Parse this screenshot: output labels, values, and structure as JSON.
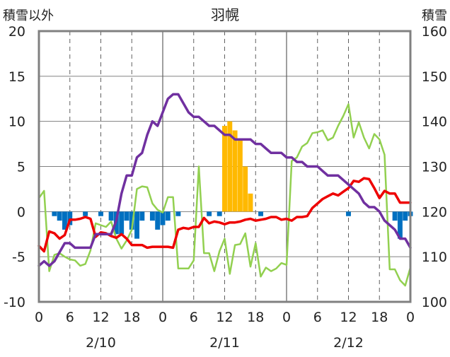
{
  "chart_data": {
    "type": "bar+line",
    "title": "羽幌",
    "ylabel_left": "積雪以外",
    "ylabel_right": "積雪",
    "ylim_left": [
      -10,
      20
    ],
    "ylim_right": [
      100,
      160
    ],
    "yticks_left": [
      "20",
      "15",
      "10",
      "5",
      "0",
      "-5",
      "-10"
    ],
    "yticks_right": [
      "160",
      "150",
      "140",
      "130",
      "120",
      "110",
      "100"
    ],
    "xlim": [
      0,
      72
    ],
    "xticks": [
      {
        "x": 0,
        "label": "0"
      },
      {
        "x": 6,
        "label": "6"
      },
      {
        "x": 12,
        "label": "12"
      },
      {
        "x": 18,
        "label": "18"
      },
      {
        "x": 24,
        "label": "0"
      },
      {
        "x": 30,
        "label": "6"
      },
      {
        "x": 36,
        "label": "12"
      },
      {
        "x": 42,
        "label": "18"
      },
      {
        "x": 48,
        "label": "0"
      },
      {
        "x": 54,
        "label": "6"
      },
      {
        "x": 60,
        "label": "12"
      },
      {
        "x": 66,
        "label": "18"
      },
      {
        "x": 72,
        "label": "0"
      }
    ],
    "date_labels": [
      {
        "x": 12,
        "label": "2/10"
      },
      {
        "x": 36,
        "label": "2/11"
      },
      {
        "x": 60,
        "label": "2/12"
      }
    ],
    "colors": {
      "precip_pos": "#ffb900",
      "precip_neg": "#0070c0",
      "temperature": "#ee0000",
      "humidity_like": "#92d050",
      "snow_depth": "#7030a0"
    },
    "bars": [
      {
        "x": 3,
        "v": -0.5
      },
      {
        "x": 4,
        "v": -1
      },
      {
        "x": 5,
        "v": -2
      },
      {
        "x": 6,
        "v": -1.5
      },
      {
        "x": 9,
        "v": -0.5
      },
      {
        "x": 12,
        "v": -0.5
      },
      {
        "x": 14,
        "v": -1
      },
      {
        "x": 15,
        "v": -2.5
      },
      {
        "x": 16,
        "v": -2.5
      },
      {
        "x": 17,
        "v": -1
      },
      {
        "x": 18,
        "v": -2
      },
      {
        "x": 19,
        "v": -3
      },
      {
        "x": 20,
        "v": -1
      },
      {
        "x": 22,
        "v": -1
      },
      {
        "x": 23,
        "v": -2
      },
      {
        "x": 24,
        "v": -1.5
      },
      {
        "x": 25,
        "v": -1
      },
      {
        "x": 27,
        "v": -0.5
      },
      {
        "x": 33,
        "v": -0.5
      },
      {
        "x": 35,
        "v": -0.5
      },
      {
        "x": 36,
        "v": 9.5
      },
      {
        "x": 37,
        "v": 10
      },
      {
        "x": 38,
        "v": 9
      },
      {
        "x": 39,
        "v": 8
      },
      {
        "x": 40,
        "v": 5
      },
      {
        "x": 41,
        "v": 2
      },
      {
        "x": 43,
        "v": -0.5
      },
      {
        "x": 60,
        "v": -0.5
      },
      {
        "x": 69,
        "v": -1
      },
      {
        "x": 70,
        "v": -3
      },
      {
        "x": 71,
        "v": -1
      },
      {
        "x": 72,
        "v": -0.5
      }
    ],
    "series": [
      {
        "axis": "left",
        "color": "#ee0000",
        "points": [
          [
            0,
            -3.8
          ],
          [
            1,
            -4.4
          ],
          [
            2,
            -2.2
          ],
          [
            3,
            -2.4
          ],
          [
            4,
            -3
          ],
          [
            5,
            -2.6
          ],
          [
            6,
            -0.9
          ],
          [
            7,
            -0.9
          ],
          [
            8,
            -0.8
          ],
          [
            9,
            -0.6
          ],
          [
            10,
            -0.8
          ],
          [
            11,
            -2.8
          ],
          [
            12,
            -2.3
          ],
          [
            13,
            -2.4
          ],
          [
            14,
            -2.7
          ],
          [
            15,
            -2.9
          ],
          [
            16,
            -2.5
          ],
          [
            17,
            -3
          ],
          [
            18,
            -3.7
          ],
          [
            19,
            -3.7
          ],
          [
            20,
            -3.7
          ],
          [
            21,
            -4
          ],
          [
            22,
            -3.9
          ],
          [
            23,
            -3.9
          ],
          [
            24,
            -3.9
          ],
          [
            25,
            -3.9
          ],
          [
            26,
            -4
          ],
          [
            27,
            -2
          ],
          [
            28,
            -1.8
          ],
          [
            29,
            -1.9
          ],
          [
            30,
            -1.7
          ],
          [
            31,
            -1.7
          ],
          [
            32,
            -0.7
          ],
          [
            33,
            -1.3
          ],
          [
            34,
            -1.1
          ],
          [
            35,
            -1.2
          ],
          [
            36,
            -1.4
          ],
          [
            37,
            -1.2
          ],
          [
            38,
            -1.2
          ],
          [
            39,
            -1.1
          ],
          [
            40,
            -0.9
          ],
          [
            41,
            -0.8
          ],
          [
            42,
            -1
          ],
          [
            43,
            -0.9
          ],
          [
            44,
            -0.8
          ],
          [
            45,
            -0.6
          ],
          [
            46,
            -0.6
          ],
          [
            47,
            -0.9
          ],
          [
            48,
            -0.8
          ],
          [
            49,
            -1
          ],
          [
            50,
            -0.6
          ],
          [
            51,
            -0.6
          ],
          [
            52,
            -0.5
          ],
          [
            53,
            0.4
          ],
          [
            54,
            0.9
          ],
          [
            55,
            1.4
          ],
          [
            56,
            1.7
          ],
          [
            57,
            2
          ],
          [
            58,
            1.8
          ],
          [
            59,
            2.2
          ],
          [
            60,
            2.6
          ],
          [
            61,
            3.4
          ],
          [
            62,
            3.3
          ],
          [
            63,
            3.7
          ],
          [
            64,
            3.6
          ],
          [
            65,
            2.6
          ],
          [
            66,
            1.5
          ],
          [
            67,
            2.3
          ],
          [
            68,
            2
          ],
          [
            69,
            2
          ],
          [
            70,
            1
          ],
          [
            71,
            1
          ],
          [
            72,
            1
          ]
        ]
      },
      {
        "axis": "left",
        "color": "#92d050",
        "points": [
          [
            0,
            1.5
          ],
          [
            1,
            2.3
          ],
          [
            2,
            -6.6
          ],
          [
            3,
            -4.8
          ],
          [
            4,
            -4.6
          ],
          [
            5,
            -5
          ],
          [
            6,
            -5.3
          ],
          [
            7,
            -5.4
          ],
          [
            8,
            -6
          ],
          [
            9,
            -5.8
          ],
          [
            10,
            -4.3
          ],
          [
            11,
            -1.3
          ],
          [
            12,
            -1.5
          ],
          [
            13,
            -1.7
          ],
          [
            14,
            -1.1
          ],
          [
            15,
            -3
          ],
          [
            16,
            -4.1
          ],
          [
            17,
            -3.2
          ],
          [
            18,
            -2
          ],
          [
            19,
            2.5
          ],
          [
            20,
            2.8
          ],
          [
            21,
            2.7
          ],
          [
            22,
            0.9
          ],
          [
            23,
            0.2
          ],
          [
            24,
            -0.1
          ],
          [
            25,
            1.6
          ],
          [
            26,
            1.6
          ],
          [
            27,
            -6.3
          ],
          [
            28,
            -6.3
          ],
          [
            29,
            -6.3
          ],
          [
            30,
            -5.4
          ],
          [
            31,
            5
          ],
          [
            32,
            -4.6
          ],
          [
            33,
            -4.6
          ],
          [
            34,
            -6.6
          ],
          [
            35,
            -4.4
          ],
          [
            36,
            -3
          ],
          [
            37,
            -6.9
          ],
          [
            38,
            -3.7
          ],
          [
            39,
            -3.6
          ],
          [
            40,
            -2.4
          ],
          [
            41,
            -6.1
          ],
          [
            42,
            -3.5
          ],
          [
            43,
            -7.2
          ],
          [
            44,
            -6.2
          ],
          [
            45,
            -6.6
          ],
          [
            46,
            -6.3
          ],
          [
            47,
            -5.7
          ],
          [
            48,
            -5.9
          ],
          [
            49,
            5.6
          ],
          [
            50,
            6
          ],
          [
            51,
            7.2
          ],
          [
            52,
            7.6
          ],
          [
            53,
            8.7
          ],
          [
            54,
            8.8
          ],
          [
            55,
            9
          ],
          [
            56,
            7.9
          ],
          [
            57,
            8.2
          ],
          [
            58,
            9.5
          ],
          [
            59,
            10.6
          ],
          [
            60,
            11.9
          ],
          [
            61,
            8.2
          ],
          [
            62,
            9.9
          ],
          [
            63,
            8.2
          ],
          [
            64,
            7
          ],
          [
            65,
            8.6
          ],
          [
            66,
            8
          ],
          [
            67,
            6.3
          ],
          [
            68,
            -6.4
          ],
          [
            69,
            -6.4
          ],
          [
            70,
            -7.6
          ],
          [
            71,
            -8.2
          ],
          [
            72,
            -6.2
          ]
        ]
      },
      {
        "axis": "right",
        "color": "#7030a0",
        "points": [
          [
            0,
            108
          ],
          [
            1,
            109
          ],
          [
            2,
            108
          ],
          [
            3,
            109
          ],
          [
            4,
            111
          ],
          [
            5,
            113
          ],
          [
            6,
            113
          ],
          [
            7,
            112
          ],
          [
            8,
            112
          ],
          [
            9,
            112
          ],
          [
            10,
            112
          ],
          [
            11,
            115
          ],
          [
            12,
            115
          ],
          [
            13,
            115
          ],
          [
            14,
            115
          ],
          [
            15,
            118
          ],
          [
            16,
            124
          ],
          [
            17,
            128
          ],
          [
            18,
            128
          ],
          [
            19,
            132
          ],
          [
            20,
            133
          ],
          [
            21,
            137
          ],
          [
            22,
            140
          ],
          [
            23,
            139
          ],
          [
            24,
            142
          ],
          [
            25,
            145
          ],
          [
            26,
            146
          ],
          [
            27,
            146
          ],
          [
            28,
            144
          ],
          [
            29,
            142
          ],
          [
            30,
            141
          ],
          [
            31,
            141
          ],
          [
            32,
            140
          ],
          [
            33,
            139
          ],
          [
            34,
            139
          ],
          [
            35,
            138
          ],
          [
            36,
            137
          ],
          [
            37,
            137
          ],
          [
            38,
            136
          ],
          [
            39,
            136
          ],
          [
            40,
            136
          ],
          [
            41,
            136
          ],
          [
            42,
            135
          ],
          [
            43,
            135
          ],
          [
            44,
            134
          ],
          [
            45,
            133
          ],
          [
            46,
            133
          ],
          [
            47,
            133
          ],
          [
            48,
            132
          ],
          [
            49,
            132
          ],
          [
            50,
            131
          ],
          [
            51,
            131
          ],
          [
            52,
            130
          ],
          [
            53,
            130
          ],
          [
            54,
            130
          ],
          [
            55,
            129
          ],
          [
            56,
            128
          ],
          [
            57,
            128
          ],
          [
            58,
            128
          ],
          [
            59,
            127
          ],
          [
            60,
            126
          ],
          [
            61,
            125
          ],
          [
            62,
            124
          ],
          [
            63,
            122
          ],
          [
            64,
            121
          ],
          [
            65,
            121
          ],
          [
            66,
            120
          ],
          [
            67,
            118
          ],
          [
            68,
            117
          ],
          [
            69,
            116
          ],
          [
            70,
            114
          ],
          [
            71,
            114
          ],
          [
            72,
            112
          ]
        ]
      }
    ]
  }
}
